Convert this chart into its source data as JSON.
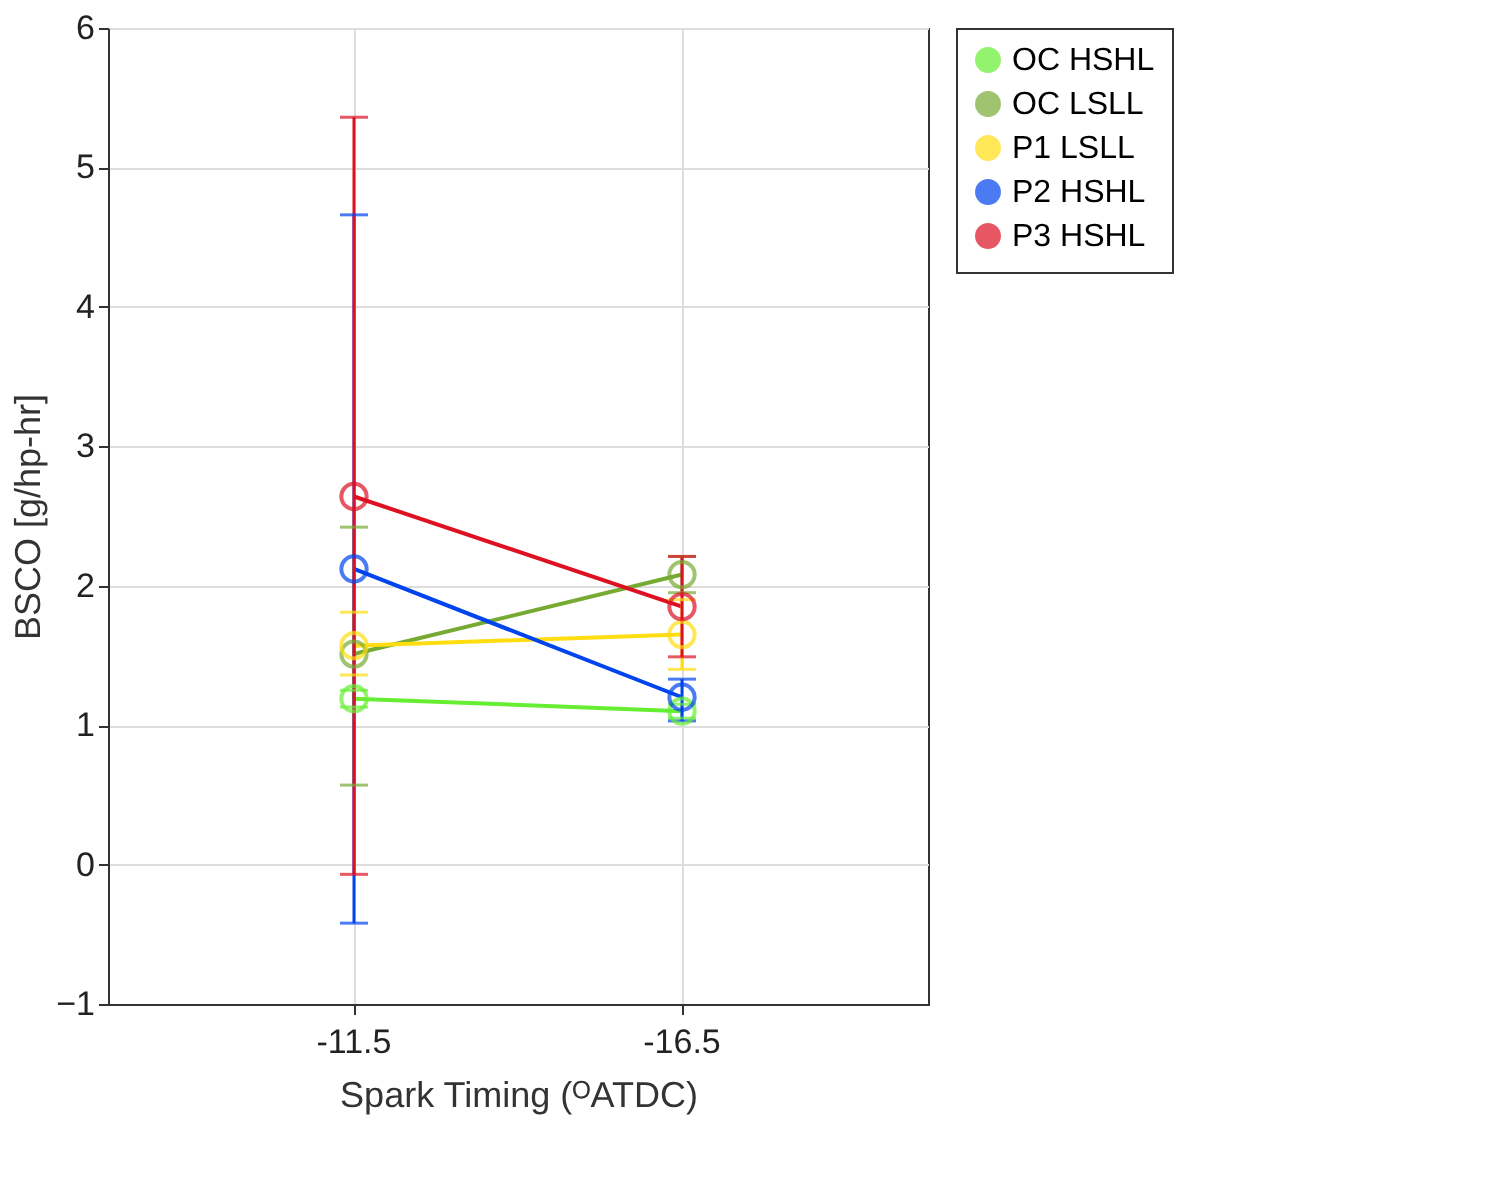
{
  "chart_data": {
    "type": "line",
    "xlabel": "Spark Timing (ᴼATDC)",
    "ylabel": "BSCO [g/hp-hr]",
    "categories": [
      "-11.5",
      "-16.5"
    ],
    "ylim": [
      -1,
      6
    ],
    "yticks": [
      -1,
      0,
      1,
      2,
      3,
      4,
      5,
      6
    ],
    "grid": true,
    "legend": "top right",
    "marker": "circle",
    "line_style": "solid",
    "series": [
      {
        "name": "OC HSHL",
        "color": "#66ee33",
        "values": [
          1.19,
          1.1
        ],
        "errors": [
          [
            1.13,
            1.25
          ],
          [
            1.05,
            1.15
          ]
        ]
      },
      {
        "name": "OC LSLL",
        "color": "#77aa33",
        "values": [
          1.51,
          2.08
        ],
        "errors": [
          [
            0.57,
            2.42
          ],
          [
            1.95,
            2.21
          ]
        ]
      },
      {
        "name": "P1 LSLL",
        "color": "#ffdd11",
        "values": [
          1.57,
          1.65
        ],
        "errors": [
          [
            1.36,
            1.81
          ],
          [
            1.4,
            1.9
          ]
        ]
      },
      {
        "name": "P2 HSHL",
        "color": "#0044ee",
        "values": [
          2.12,
          1.2
        ],
        "errors": [
          [
            -0.42,
            4.66
          ],
          [
            1.03,
            1.33
          ]
        ]
      },
      {
        "name": "P3 HSHL",
        "color": "#dd1122",
        "values": [
          2.64,
          1.85
        ],
        "errors": [
          [
            -0.07,
            5.36
          ],
          [
            1.49,
            2.21
          ]
        ]
      }
    ]
  }
}
